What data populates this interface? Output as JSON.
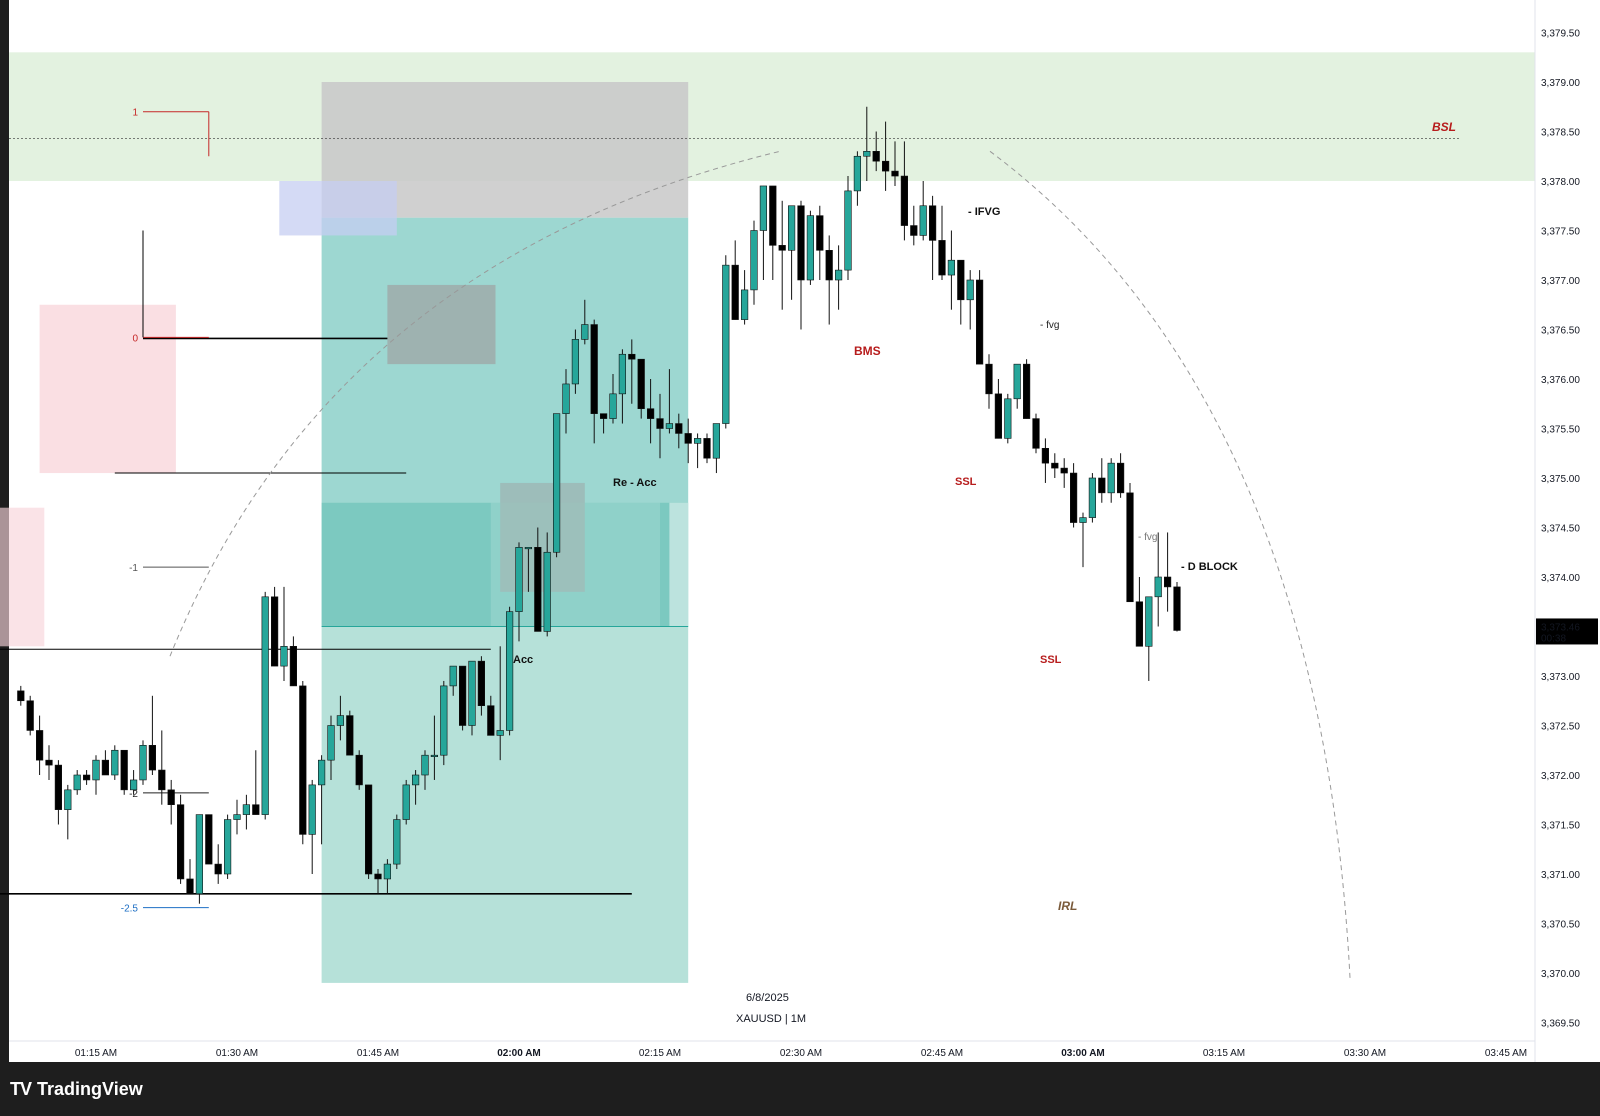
{
  "app": {
    "brand": "TradingView",
    "logo_icon": "tradingview-logo-icon"
  },
  "chart_info": {
    "date": "6/8/2025",
    "symbol": "XAUUSD",
    "interval": "1M"
  },
  "colors": {
    "bull": "#26a69a",
    "bear": "#000000",
    "bsl_zone": "#e3f2e0",
    "long_target": "#b2dfd7",
    "long_entry": "#4db6ac",
    "stop_zone": "#c8c8c8",
    "accum": "#f8d4da",
    "ifvg": "#c5cdf2",
    "fvg": "#9e9e9e",
    "label_red": "#b71c1c",
    "label_brown": "#7a5a3a",
    "fib_blue": "#1e6fc4"
  },
  "chart_data": {
    "type": "candlestick",
    "xlabel": "",
    "ylabel": "",
    "ylim": [
      3369.3,
      3379.75
    ],
    "x_ticks": [
      "01:15 AM",
      "01:30 AM",
      "01:45 AM",
      "02:00 AM",
      "02:15 AM",
      "02:30 AM",
      "02:45 AM",
      "03:00 AM",
      "03:15 AM",
      "03:30 AM",
      "03:45 AM"
    ],
    "x_ticks_bold": [
      "02:00 AM",
      "03:00 AM"
    ],
    "y_ticks": [
      "3,379.50",
      "3,379.00",
      "3,378.50",
      "3,378.00",
      "3,377.50",
      "3,377.00",
      "3,376.50",
      "3,376.00",
      "3,375.50",
      "3,375.00",
      "3,374.50",
      "3,374.00",
      "3,373.50",
      "3,373.00",
      "3,372.50",
      "3,372.00",
      "3,371.50",
      "3,371.00",
      "3,370.50",
      "3,370.00",
      "3,369.50"
    ],
    "last_price": {
      "value": "3,373.46",
      "countdown": "00:38"
    },
    "x_start_minutes": 67,
    "candles": [
      [
        3372.85,
        3372.9,
        3372.7,
        3372.75
      ],
      [
        3372.75,
        3372.8,
        3372.4,
        3372.45
      ],
      [
        3372.45,
        3372.6,
        3372.0,
        3372.15
      ],
      [
        3372.15,
        3372.3,
        3371.95,
        3372.1
      ],
      [
        3372.1,
        3372.15,
        3371.5,
        3371.65
      ],
      [
        3371.65,
        3371.9,
        3371.35,
        3371.85
      ],
      [
        3371.85,
        3372.05,
        3371.8,
        3372.0
      ],
      [
        3372.0,
        3372.05,
        3371.9,
        3371.95
      ],
      [
        3371.95,
        3372.2,
        3371.8,
        3372.15
      ],
      [
        3372.15,
        3372.25,
        3372.0,
        3372.0
      ],
      [
        3372.0,
        3372.3,
        3371.95,
        3372.25
      ],
      [
        3372.25,
        3372.25,
        3371.8,
        3371.85
      ],
      [
        3371.85,
        3372.05,
        3371.8,
        3371.95
      ],
      [
        3371.95,
        3372.35,
        3371.9,
        3372.3
      ],
      [
        3372.3,
        3372.8,
        3372.0,
        3372.05
      ],
      [
        3372.05,
        3372.45,
        3371.7,
        3371.85
      ],
      [
        3371.85,
        3371.95,
        3371.5,
        3371.7
      ],
      [
        3371.7,
        3371.8,
        3370.9,
        3370.95
      ],
      [
        3370.95,
        3371.15,
        3370.8,
        3370.8
      ],
      [
        3370.8,
        3371.6,
        3370.7,
        3371.6
      ],
      [
        3371.6,
        3371.6,
        3371.1,
        3371.1
      ],
      [
        3371.1,
        3371.3,
        3370.9,
        3371.0
      ],
      [
        3371.0,
        3371.6,
        3370.95,
        3371.55
      ],
      [
        3371.55,
        3371.75,
        3371.4,
        3371.6
      ],
      [
        3371.6,
        3371.8,
        3371.45,
        3371.7
      ],
      [
        3371.7,
        3372.25,
        3371.6,
        3371.6
      ],
      [
        3371.6,
        3373.85,
        3371.55,
        3373.8
      ],
      [
        3373.8,
        3373.9,
        3373.1,
        3373.1
      ],
      [
        3373.1,
        3373.9,
        3372.95,
        3373.3
      ],
      [
        3373.3,
        3373.4,
        3372.9,
        3372.9
      ],
      [
        3372.9,
        3372.95,
        3371.3,
        3371.4
      ],
      [
        3371.4,
        3371.95,
        3371.0,
        3371.9
      ],
      [
        3371.9,
        3372.2,
        3371.3,
        3372.15
      ],
      [
        3372.15,
        3372.6,
        3371.95,
        3372.5
      ],
      [
        3372.5,
        3372.8,
        3372.35,
        3372.6
      ],
      [
        3372.6,
        3372.65,
        3372.2,
        3372.2
      ],
      [
        3372.2,
        3372.25,
        3371.85,
        3371.9
      ],
      [
        3371.9,
        3371.9,
        3370.95,
        3371.0
      ],
      [
        3371.0,
        3371.05,
        3370.8,
        3370.95
      ],
      [
        3370.95,
        3371.15,
        3370.8,
        3371.1
      ],
      [
        3371.1,
        3371.6,
        3371.05,
        3371.55
      ],
      [
        3371.55,
        3371.95,
        3371.5,
        3371.9
      ],
      [
        3371.9,
        3372.05,
        3371.7,
        3372.0
      ],
      [
        3372.0,
        3372.25,
        3371.85,
        3372.2
      ],
      [
        3372.2,
        3372.6,
        3371.95,
        3372.2
      ],
      [
        3372.2,
        3372.95,
        3372.1,
        3372.9
      ],
      [
        3372.9,
        3373.1,
        3372.8,
        3373.1
      ],
      [
        3373.1,
        3373.1,
        3372.45,
        3372.5
      ],
      [
        3372.5,
        3373.15,
        3372.4,
        3373.15
      ],
      [
        3373.15,
        3373.2,
        3372.6,
        3372.7
      ],
      [
        3372.7,
        3372.8,
        3372.4,
        3372.4
      ],
      [
        3372.4,
        3373.3,
        3372.15,
        3372.45
      ],
      [
        3372.45,
        3373.7,
        3372.4,
        3373.65
      ],
      [
        3373.65,
        3374.35,
        3373.35,
        3374.3
      ],
      [
        3374.3,
        3374.3,
        3373.85,
        3374.3
      ],
      [
        3374.3,
        3374.5,
        3373.45,
        3373.45
      ],
      [
        3373.45,
        3374.45,
        3373.4,
        3374.25
      ],
      [
        3374.25,
        3375.65,
        3374.2,
        3375.65
      ],
      [
        3375.65,
        3376.1,
        3375.45,
        3375.95
      ],
      [
        3375.95,
        3376.5,
        3375.85,
        3376.4
      ],
      [
        3376.4,
        3376.8,
        3376.35,
        3376.55
      ],
      [
        3376.55,
        3376.6,
        3375.35,
        3375.65
      ],
      [
        3375.65,
        3375.65,
        3375.45,
        3375.6
      ],
      [
        3375.6,
        3376.05,
        3375.55,
        3375.85
      ],
      [
        3375.85,
        3376.3,
        3375.55,
        3376.25
      ],
      [
        3376.25,
        3376.4,
        3375.75,
        3376.2
      ],
      [
        3376.2,
        3376.2,
        3375.6,
        3375.7
      ],
      [
        3375.7,
        3376.0,
        3375.35,
        3375.6
      ],
      [
        3375.6,
        3375.85,
        3375.2,
        3375.5
      ],
      [
        3375.5,
        3376.1,
        3375.45,
        3375.55
      ],
      [
        3375.55,
        3375.65,
        3375.3,
        3375.45
      ],
      [
        3375.45,
        3375.6,
        3375.15,
        3375.35
      ],
      [
        3375.35,
        3375.45,
        3375.1,
        3375.4
      ],
      [
        3375.4,
        3375.45,
        3375.15,
        3375.2
      ],
      [
        3375.2,
        3375.55,
        3375.05,
        3375.55
      ],
      [
        3375.55,
        3377.25,
        3375.5,
        3377.15
      ],
      [
        3377.15,
        3377.4,
        3376.6,
        3376.6
      ],
      [
        3376.6,
        3377.1,
        3376.55,
        3376.9
      ],
      [
        3376.9,
        3377.6,
        3376.75,
        3377.5
      ],
      [
        3377.5,
        3377.95,
        3377.0,
        3377.95
      ],
      [
        3377.95,
        3377.95,
        3377.0,
        3377.35
      ],
      [
        3377.35,
        3377.8,
        3376.7,
        3377.3
      ],
      [
        3377.3,
        3377.65,
        3376.8,
        3377.75
      ],
      [
        3377.75,
        3377.8,
        3376.5,
        3377.0
      ],
      [
        3377.0,
        3377.7,
        3376.95,
        3377.65
      ],
      [
        3377.65,
        3377.75,
        3377.0,
        3377.3
      ],
      [
        3377.3,
        3377.45,
        3376.55,
        3377.0
      ],
      [
        3377.0,
        3377.35,
        3376.7,
        3377.1
      ],
      [
        3377.1,
        3378.05,
        3377.0,
        3377.9
      ],
      [
        3377.9,
        3378.3,
        3377.75,
        3378.25
      ],
      [
        3378.25,
        3378.75,
        3378.0,
        3378.3
      ],
      [
        3378.3,
        3378.5,
        3378.1,
        3378.2
      ],
      [
        3378.2,
        3378.6,
        3377.9,
        3378.1
      ],
      [
        3378.1,
        3378.4,
        3377.95,
        3378.05
      ],
      [
        3378.05,
        3378.4,
        3377.4,
        3377.55
      ],
      [
        3377.55,
        3377.75,
        3377.35,
        3377.45
      ],
      [
        3377.45,
        3378.0,
        3377.4,
        3377.75
      ],
      [
        3377.75,
        3377.85,
        3377.0,
        3377.4
      ],
      [
        3377.4,
        3377.75,
        3377.0,
        3377.05
      ],
      [
        3377.05,
        3377.5,
        3376.7,
        3377.2
      ],
      [
        3377.2,
        3377.2,
        3376.55,
        3376.8
      ],
      [
        3376.8,
        3377.1,
        3376.5,
        3377.0
      ],
      [
        3377.0,
        3377.1,
        3376.15,
        3376.15
      ],
      [
        3376.15,
        3376.25,
        3375.7,
        3375.85
      ],
      [
        3375.85,
        3376.0,
        3375.4,
        3375.4
      ],
      [
        3375.4,
        3375.85,
        3375.35,
        3375.8
      ],
      [
        3375.8,
        3376.15,
        3375.7,
        3376.15
      ],
      [
        3376.15,
        3376.2,
        3375.6,
        3375.6
      ],
      [
        3375.6,
        3375.65,
        3375.25,
        3375.3
      ],
      [
        3375.3,
        3375.4,
        3374.95,
        3375.15
      ],
      [
        3375.15,
        3375.25,
        3375.0,
        3375.1
      ],
      [
        3375.1,
        3375.2,
        3374.9,
        3375.05
      ],
      [
        3375.05,
        3375.15,
        3374.5,
        3374.55
      ],
      [
        3374.55,
        3374.65,
        3374.1,
        3374.6
      ],
      [
        3374.6,
        3375.05,
        3374.55,
        3375.0
      ],
      [
        3375.0,
        3375.2,
        3374.75,
        3374.85
      ],
      [
        3374.85,
        3375.2,
        3374.75,
        3375.15
      ],
      [
        3375.15,
        3375.25,
        3374.8,
        3374.85
      ],
      [
        3374.85,
        3374.95,
        3373.75,
        3373.75
      ],
      [
        3373.75,
        3374.0,
        3373.3,
        3373.3
      ],
      [
        3373.3,
        3373.8,
        3372.95,
        3373.8
      ],
      [
        3373.8,
        3374.45,
        3373.5,
        3374.0
      ],
      [
        3374.0,
        3374.45,
        3373.65,
        3373.9
      ],
      [
        3373.9,
        3373.95,
        3373.45,
        3373.46
      ]
    ]
  },
  "annotations": {
    "bsl": "BSL",
    "bms": "BMS",
    "ssl_1": "SSL",
    "ssl_2": "SSL",
    "irl": "IRL",
    "acc": "Acc",
    "re_acc": "Re - Acc",
    "ifvg": "- IFVG",
    "fvg_1": "- fvg",
    "fvg_2": "- fvg",
    "d_block": "- D BLOCK",
    "fib_levels": [
      "1",
      "0",
      "-1",
      "-2",
      "-2.5"
    ]
  }
}
